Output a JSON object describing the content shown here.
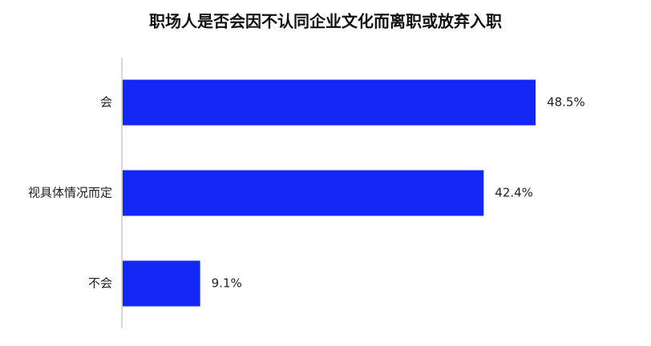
{
  "chart_data": {
    "type": "barh",
    "title": "职场人是否会因不认同企业文化而离职或放弃入职",
    "categories": [
      "会",
      "视具体情况而定",
      "不会"
    ],
    "values": [
      48.5,
      42.4,
      9.1
    ],
    "value_labels": [
      "48.5%",
      "42.4%",
      "9.1%"
    ],
    "color": "#1428f5"
  }
}
